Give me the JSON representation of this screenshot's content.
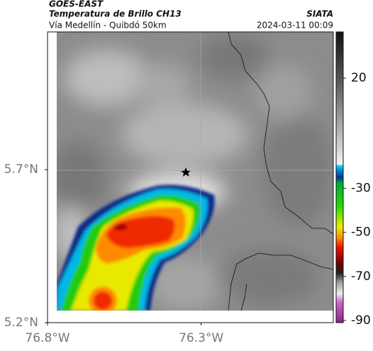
{
  "header": {
    "satellite": "GOES-EAST",
    "title": "Temperatura de Brillo CH13",
    "subtitle": "Vía Medellín - Quibdó 50km",
    "source": "SIATA",
    "datetime": "2024-03-11 00:09"
  },
  "map": {
    "xlim": [
      -76.8,
      -75.87
    ],
    "ylim": [
      5.2,
      6.15
    ],
    "xticks": [
      {
        "value": -76.8,
        "label": "76.8°W"
      },
      {
        "value": -76.3,
        "label": "76.3°W"
      }
    ],
    "yticks": [
      {
        "value": 5.2,
        "label": "5.2°N"
      },
      {
        "value": 5.7,
        "label": "5.7°N"
      }
    ]
  },
  "colorbar": {
    "lim": [
      -91,
      41
    ],
    "ticks": [
      20,
      -30,
      -50,
      -70,
      -90
    ]
  }
}
